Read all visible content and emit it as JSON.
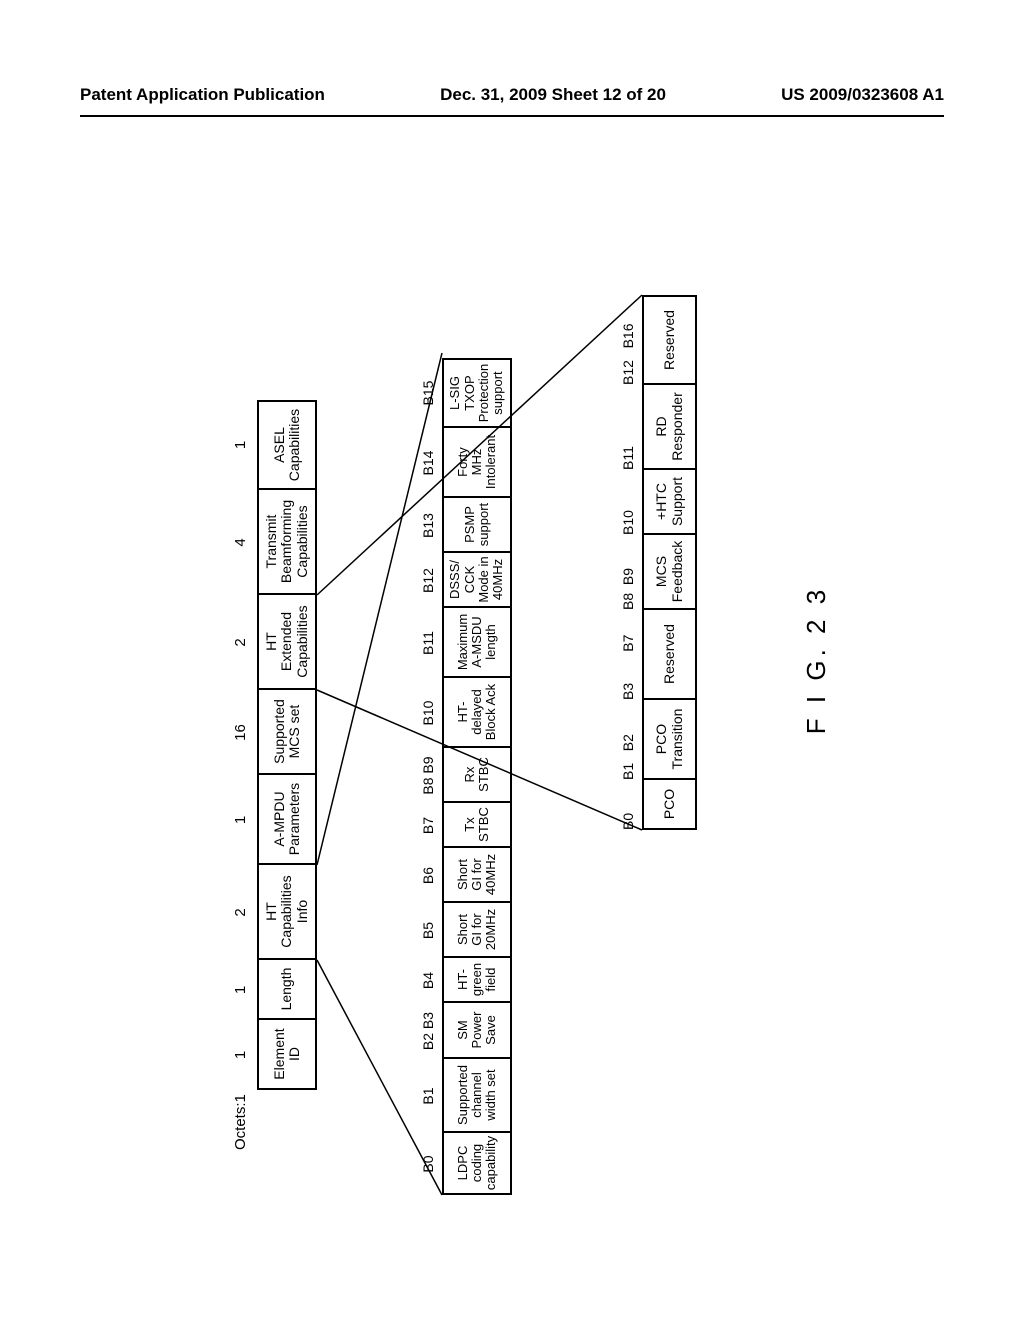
{
  "header": {
    "left": "Patent Application Publication",
    "center": "Dec. 31, 2009  Sheet 12 of 20",
    "right": "US 2009/0323608 A1"
  },
  "figure_label": "F I G. 2 3",
  "octets_label": "Octets:1",
  "row1": {
    "sizes": [
      "1",
      "1",
      "2",
      "1",
      "16",
      "2",
      "4",
      "1"
    ],
    "widths": [
      70,
      60,
      95,
      90,
      85,
      95,
      105,
      90
    ],
    "cells": [
      "Element\nID",
      "Length",
      "HT\nCapabilities\nInfo",
      "A-MPDU\nParameters",
      "Supported\nMCS set",
      "HT\nExtended\nCapabilities",
      "Transmit\nBeamforming\nCapabilities",
      "ASEL\nCapabilities"
    ]
  },
  "row2": {
    "bits": [
      "B0",
      "B1",
      "B2  B3",
      "B4",
      "B5",
      "B6",
      "B7",
      "B8  B9",
      "B10",
      "B11",
      "B12",
      "B13",
      "B14",
      "B15"
    ],
    "bit_widths": [
      62,
      74,
      56,
      45,
      55,
      55,
      45,
      55,
      70,
      70,
      55,
      55,
      70,
      70
    ],
    "widths": [
      62,
      74,
      56,
      45,
      55,
      55,
      45,
      55,
      70,
      70,
      55,
      55,
      70,
      70
    ],
    "cells": [
      "LDPC\ncoding\ncapability",
      "Supported\nchannel\nwidth set",
      "SM\nPower\nSave",
      "HT-\ngreen\nfield",
      "Short\nGI for\n20MHz",
      "Short\nGI for\n40MHz",
      "Tx\nSTBC",
      "Rx\nSTBC",
      "HT-\ndelayed\nBlock Ack",
      "Maximum\nA-MSDU\nlength",
      "DSSS/\nCCK\nMode in\n40MHz",
      "PSMP\nsupport",
      "Forty\nMHz\nIntolerant",
      "L-SIG\nTXOP\nProtection\nsupport"
    ]
  },
  "row3": {
    "bits": [
      "B0",
      "B1   B2",
      "B3        B7",
      "B8  B9",
      "B10",
      "B11",
      "B12   B16"
    ],
    "bit_widths": [
      50,
      80,
      90,
      75,
      65,
      85,
      90
    ],
    "widths": [
      50,
      80,
      90,
      75,
      65,
      85,
      90
    ],
    "cells": [
      "PCO",
      "PCO\nTransition",
      "Reserved",
      "MCS\nFeedback",
      "+HTC\nSupport",
      "RD\nResponder",
      "Reserved"
    ]
  },
  "colors": {
    "line": "#000000",
    "background": "#ffffff",
    "text": "#000000"
  }
}
